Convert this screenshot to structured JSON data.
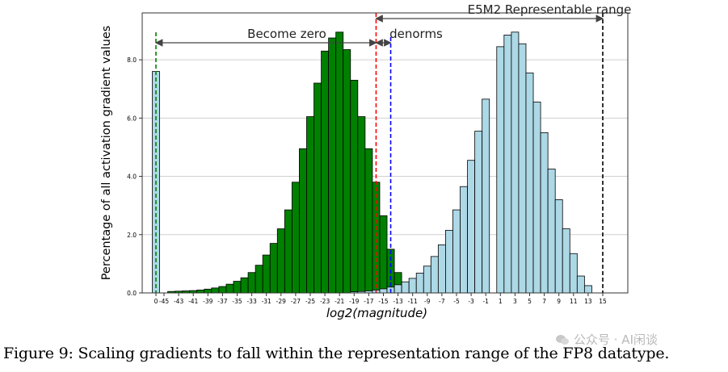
{
  "figure": {
    "caption": "Figure 9: Scaling gradients to fall within the representation range of the FP8 datatype.",
    "watermark": "公众号 · AI闲谈"
  },
  "chart_data": {
    "type": "bar",
    "xlabel": "log2(magnitude)",
    "ylabel": "Percentage of all activation gradient values",
    "ylim": [
      0,
      9.0
    ],
    "yticks": [
      "0.0",
      "2.0",
      "4.0",
      "6.0",
      "8.0"
    ],
    "xtick_labels": [
      "0",
      "-45",
      "-43",
      "-41",
      "-39",
      "-37",
      "-35",
      "-33",
      "-31",
      "-29",
      "-27",
      "-25",
      "-23",
      "-21",
      "-19",
      "-17",
      "-15",
      "-13",
      "-11",
      "-9",
      "-7",
      "-5",
      "-3",
      "-1",
      "1",
      "3",
      "5",
      "7",
      "9",
      "11",
      "13",
      "15"
    ],
    "grid": "horizontal",
    "series": [
      {
        "color": "#008000",
        "x": [
          -44,
          -43,
          -42,
          -41,
          -40,
          -39,
          -38,
          -37,
          -36,
          -35,
          -34,
          -33,
          -32,
          -31,
          -30,
          -29,
          -28,
          -27,
          -26,
          -25,
          -24,
          -23,
          -22,
          -21,
          -20,
          -19,
          -18,
          -17,
          -16,
          -15,
          -14,
          -13,
          -12
        ],
        "values": [
          0.05,
          0.06,
          0.07,
          0.08,
          0.1,
          0.13,
          0.17,
          0.22,
          0.3,
          0.4,
          0.52,
          0.7,
          0.95,
          1.3,
          1.7,
          2.2,
          2.85,
          3.8,
          4.95,
          6.05,
          7.2,
          8.3,
          8.75,
          8.95,
          8.35,
          7.3,
          6.05,
          4.95,
          3.8,
          2.65,
          1.5,
          0.7,
          0.25
        ]
      },
      {
        "color": "#add8e6",
        "x": [
          -19,
          -18,
          -17,
          -16,
          -15,
          -14,
          -13,
          -12,
          -11,
          -10,
          -9,
          -8,
          -7,
          -6,
          -5,
          -4,
          -3,
          -2,
          -1,
          0,
          1,
          2,
          3,
          4,
          5,
          6,
          7,
          8,
          9,
          10,
          11,
          12,
          13
        ],
        "values": [
          0.04,
          0.05,
          0.07,
          0.1,
          0.14,
          0.2,
          0.28,
          0.38,
          0.5,
          0.68,
          0.92,
          1.25,
          1.65,
          2.15,
          2.85,
          3.65,
          4.55,
          5.55,
          6.65,
          7.6,
          8.45,
          8.85,
          8.95,
          8.55,
          7.55,
          6.55,
          5.5,
          4.25,
          3.2,
          2.2,
          1.35,
          0.58,
          0.25
        ]
      }
    ],
    "vlines": [
      {
        "x": 0,
        "color": "#008000",
        "style": "dashed"
      },
      {
        "x": -16,
        "color": "#ff0000",
        "style": "dashed"
      },
      {
        "x": -14,
        "color": "#0000ff",
        "style": "dashed"
      },
      {
        "x": 15,
        "color": "#000000",
        "style": "dashed"
      }
    ],
    "annotations": [
      {
        "text": "Become zero",
        "from": 0,
        "to": -16
      },
      {
        "text": "denorms",
        "from": -16,
        "to": -14
      },
      {
        "text": "E5M2 Representable range",
        "from": -16,
        "to": 15
      }
    ]
  }
}
